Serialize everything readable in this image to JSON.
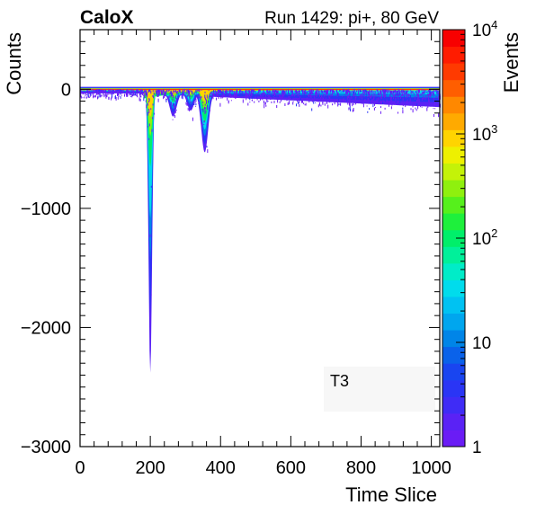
{
  "chart_data": {
    "type": "heatmap",
    "header": {
      "experiment": "CaloX",
      "run_label": "Run 1429: pi+, 80 GeV"
    },
    "xlabel": "Time Slice",
    "ylabel": "Counts",
    "zlabel": "Events",
    "xlim": [
      0,
      1024
    ],
    "ylim": [
      -3000,
      500
    ],
    "zlim": [
      1,
      10000
    ],
    "z_scale": "log",
    "x_ticks": [
      "0",
      "200",
      "400",
      "600",
      "800",
      "1000"
    ],
    "y_ticks": [
      "0",
      "−1000",
      "−2000",
      "−3000"
    ],
    "z_ticks": [
      {
        "value": 1,
        "label": "1"
      },
      {
        "value": 10,
        "label": "10"
      },
      {
        "value": 100,
        "label": "10",
        "exp": "2"
      },
      {
        "value": 1000,
        "label": "10",
        "exp": "3"
      },
      {
        "value": 10000,
        "label": "10",
        "exp": "4"
      }
    ],
    "annotation": "T3",
    "palette": [
      "#6a1cf5",
      "#5a22f5",
      "#3f2cf6",
      "#2a35f5",
      "#1945f0",
      "#0a62ea",
      "#0085e8",
      "#00a6ee",
      "#00c2f2",
      "#00dcec",
      "#00ecc8",
      "#00f09a",
      "#00ef6a",
      "#1ef03c",
      "#56f01c",
      "#8ff00e",
      "#c4f208",
      "#eef000",
      "#ffd400",
      "#ffaa00",
      "#ff8800",
      "#ff5e00",
      "#ff3a00",
      "#ff1c00",
      "#f80000"
    ],
    "pulse": {
      "baseline_counts": 0,
      "baseline_noise_counts": 20,
      "main_peak": {
        "time_slice": 200,
        "min_counts": -2380,
        "median_counts": -650
      },
      "secondary_dips": [
        {
          "time_slice": 265,
          "min_counts": -200
        },
        {
          "time_slice": 315,
          "min_counts": -150
        },
        {
          "time_slice": 355,
          "min_counts": -500
        }
      ],
      "tail_end_counts": -150
    }
  }
}
